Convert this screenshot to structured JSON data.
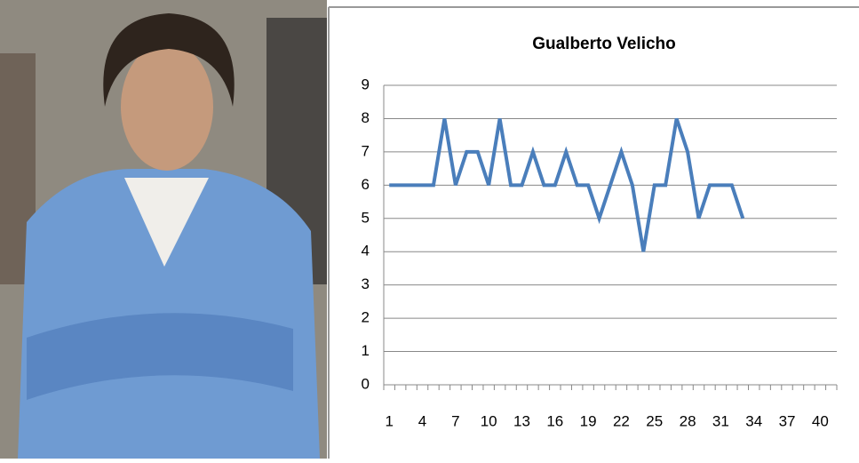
{
  "chart_data": {
    "type": "line",
    "title": "Gualberto Velicho",
    "categories": [
      1,
      null,
      null,
      4,
      null,
      null,
      7,
      null,
      null,
      10,
      null,
      null,
      13,
      null,
      null,
      16,
      null,
      null,
      19,
      null,
      null,
      22,
      null,
      null,
      25,
      null,
      null,
      28,
      null,
      null,
      31,
      null,
      null,
      34,
      null,
      null,
      37,
      null,
      null,
      40,
      null
    ],
    "series": [
      {
        "name": "Gualberto Velicho",
        "color": "#4a7ebb",
        "values": [
          6,
          6,
          6,
          6,
          6,
          8,
          6,
          7,
          7,
          6,
          8,
          6,
          6,
          7,
          6,
          6,
          7,
          6,
          6,
          5,
          6,
          7,
          6,
          4,
          6,
          6,
          8,
          7,
          5,
          6,
          6,
          6,
          5,
          null,
          null,
          null,
          null,
          null,
          null,
          null,
          null
        ]
      }
    ],
    "ylim": [
      0,
      9
    ],
    "yticks": [
      0,
      1,
      2,
      3,
      4,
      5,
      6,
      7,
      8,
      9
    ],
    "grid": true
  }
}
